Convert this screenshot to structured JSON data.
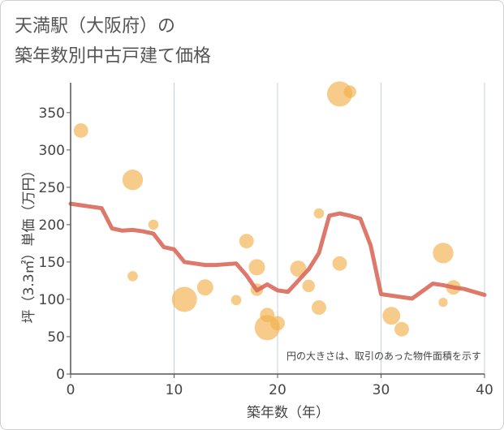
{
  "title": {
    "line1": "天満駅（大阪府）の",
    "line2": "築年数別中古戸建て価格"
  },
  "colors": {
    "bubble": "#f2b04c",
    "line": "#d9695a",
    "grid": "#c5d0dc",
    "axis": "#555555"
  },
  "chart_data": {
    "type": "scatter",
    "title": "天満駅（大阪府）の築年数別中古戸建て価格",
    "xlabel": "築年数（年）",
    "ylabel": "坪（3.3㎡）単価（万円）",
    "xlim": [
      0,
      40
    ],
    "ylim": [
      0,
      390
    ],
    "xticks": [
      0,
      10,
      20,
      30,
      40
    ],
    "yticks": [
      0,
      50,
      100,
      150,
      200,
      250,
      300,
      350
    ],
    "grid": "vertical",
    "annotation": "円の大きさは、取引のあった物件面積を示す",
    "bubbles": [
      {
        "x": 1,
        "y": 326,
        "size": 2
      },
      {
        "x": 6,
        "y": 260,
        "size": 4
      },
      {
        "x": 6,
        "y": 131,
        "size": 1
      },
      {
        "x": 8,
        "y": 200,
        "size": 1
      },
      {
        "x": 11,
        "y": 100,
        "size": 6
      },
      {
        "x": 13,
        "y": 116,
        "size": 2.5
      },
      {
        "x": 16,
        "y": 99,
        "size": 1
      },
      {
        "x": 17,
        "y": 178,
        "size": 2
      },
      {
        "x": 18,
        "y": 143,
        "size": 2.5
      },
      {
        "x": 18,
        "y": 113,
        "size": 1.5
      },
      {
        "x": 19,
        "y": 79,
        "size": 2
      },
      {
        "x": 19,
        "y": 62,
        "size": 6
      },
      {
        "x": 20,
        "y": 68,
        "size": 2
      },
      {
        "x": 22,
        "y": 141,
        "size": 2.5
      },
      {
        "x": 23,
        "y": 118,
        "size": 1.5
      },
      {
        "x": 24,
        "y": 89,
        "size": 2
      },
      {
        "x": 24,
        "y": 215,
        "size": 1
      },
      {
        "x": 26,
        "y": 375,
        "size": 6
      },
      {
        "x": 27,
        "y": 378,
        "size": 1.5
      },
      {
        "x": 26,
        "y": 148,
        "size": 2
      },
      {
        "x": 31,
        "y": 78,
        "size": 3
      },
      {
        "x": 32,
        "y": 60,
        "size": 2
      },
      {
        "x": 36,
        "y": 162,
        "size": 4
      },
      {
        "x": 36,
        "y": 96,
        "size": 0.8
      },
      {
        "x": 37,
        "y": 116,
        "size": 2
      }
    ],
    "trend_line": {
      "x": [
        0,
        1,
        2,
        3,
        4,
        5,
        6,
        7,
        8,
        9,
        10,
        11,
        12,
        13,
        14,
        15,
        16,
        17,
        18,
        19,
        20,
        21,
        22,
        23,
        24,
        25,
        26,
        27,
        28,
        29,
        30,
        31,
        32,
        33,
        34,
        35,
        36,
        37,
        38,
        39,
        40
      ],
      "y": [
        228,
        226,
        224,
        222,
        195,
        192,
        193,
        191,
        188,
        170,
        167,
        150,
        148,
        146,
        146,
        147,
        148,
        132,
        112,
        120,
        112,
        110,
        125,
        140,
        162,
        212,
        215,
        212,
        208,
        172,
        107,
        105,
        103,
        101,
        111,
        121,
        119,
        116,
        114,
        110,
        106
      ]
    }
  }
}
